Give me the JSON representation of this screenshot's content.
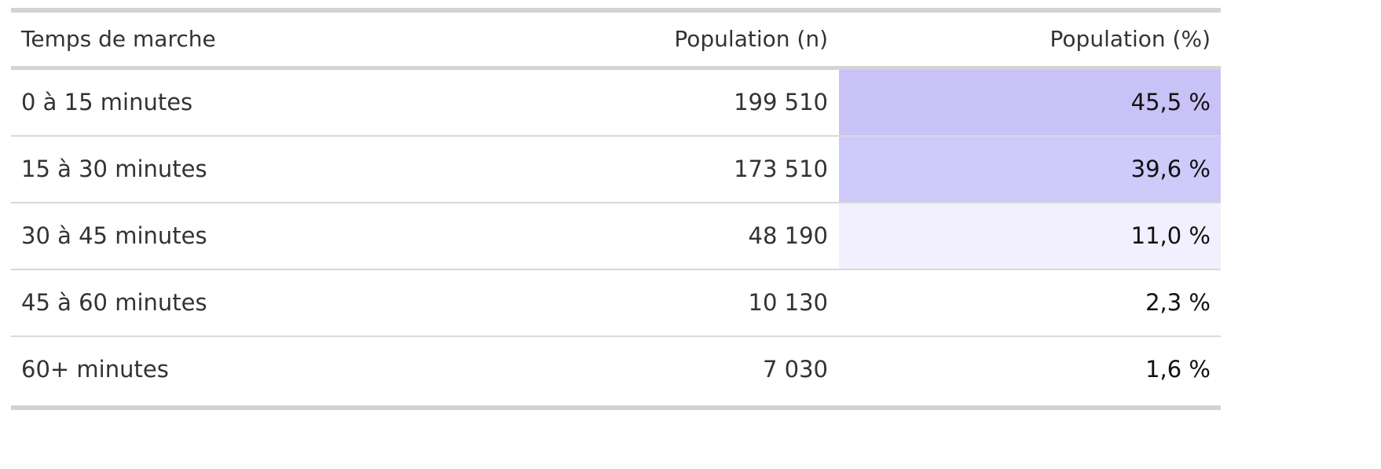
{
  "chart_data": {
    "type": "table",
    "columns": [
      "Temps de marche",
      "Population (n)",
      "Population (%)"
    ],
    "rows": [
      {
        "label": "0 à 15 minutes",
        "n": "199 510",
        "pct": "45,5 %",
        "pct_value": 45.5
      },
      {
        "label": "15 à 30 minutes",
        "n": "173 510",
        "pct": "39,6 %",
        "pct_value": 39.6
      },
      {
        "label": "30 à 45 minutes",
        "n": "48 190",
        "pct": "11,0 %",
        "pct_value": 11.0
      },
      {
        "label": "45 à 60 minutes",
        "n": "10 130",
        "pct": "2,3 %",
        "pct_value": 2.3
      },
      {
        "label": "60+ minutes",
        "n": "7 030",
        "pct": "1,6 %",
        "pct_value": 1.6
      }
    ],
    "heat_colors": {
      "high": "#c8c2f7",
      "mid": "#cecafa",
      "low": "#f2f0fe",
      "none": "#ffffff"
    }
  }
}
